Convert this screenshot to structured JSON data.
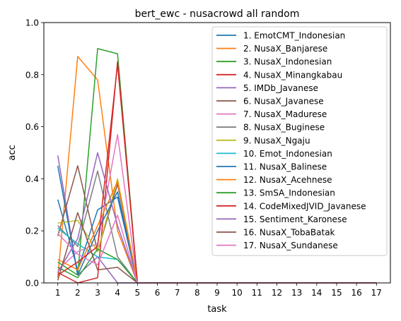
{
  "chart_data": {
    "type": "line",
    "title": "bert_ewc - nusacrowd all random",
    "xlabel": "task",
    "ylabel": "acc",
    "x": [
      1,
      2,
      3,
      4,
      5,
      6,
      7,
      8,
      9,
      10,
      11,
      12,
      13,
      14,
      15,
      16,
      17
    ],
    "x_ticks": [
      "1",
      "2",
      "3",
      "4",
      "5",
      "6",
      "7",
      "8",
      "9",
      "10",
      "11",
      "12",
      "13",
      "14",
      "15",
      "16",
      "17"
    ],
    "ylim": [
      0,
      1
    ],
    "y_ticks": [
      "0.0",
      "0.2",
      "0.4",
      "0.6",
      "0.8",
      "1.0"
    ],
    "grid": false,
    "legend_position": "upper-right",
    "series": [
      {
        "name": "1. EmotCMT_Indonesian",
        "color": "#1f77b4",
        "values": [
          0.32,
          0.05,
          0.28,
          0.33,
          0,
          0,
          0,
          0,
          0,
          0,
          0,
          0,
          0,
          0,
          0,
          0,
          0
        ]
      },
      {
        "name": "2. NusaX_Banjarese",
        "color": "#ff7f0e",
        "values": [
          0.02,
          0.87,
          0.78,
          0.2,
          0,
          0,
          0,
          0,
          0,
          0,
          0,
          0,
          0,
          0,
          0,
          0,
          0
        ]
      },
      {
        "name": "3. NusaX_Indonesian",
        "color": "#2ca02c",
        "values": [
          0.08,
          0.03,
          0.9,
          0.88,
          0,
          0,
          0,
          0,
          0,
          0,
          0,
          0,
          0,
          0,
          0,
          0,
          0
        ]
      },
      {
        "name": "4. NusaX_Minangkabau",
        "color": "#d62728",
        "values": [
          0.04,
          0.0,
          0.02,
          0.85,
          0,
          0,
          0,
          0,
          0,
          0,
          0,
          0,
          0,
          0,
          0,
          0,
          0
        ]
      },
      {
        "name": "5. IMDb_Javanese",
        "color": "#9467bd",
        "values": [
          0.49,
          0.03,
          0.1,
          0.0,
          0,
          0,
          0,
          0,
          0,
          0,
          0,
          0,
          0,
          0,
          0,
          0,
          0
        ]
      },
      {
        "name": "6. NusaX_Javanese",
        "color": "#8c564b",
        "values": [
          0.18,
          0.45,
          0.12,
          0.38,
          0,
          0,
          0,
          0,
          0,
          0,
          0,
          0,
          0,
          0,
          0,
          0,
          0
        ]
      },
      {
        "name": "7. NusaX_Madurese",
        "color": "#e377c2",
        "values": [
          0.05,
          0.12,
          0.15,
          0.57,
          0,
          0,
          0,
          0,
          0,
          0,
          0,
          0,
          0,
          0,
          0,
          0,
          0
        ]
      },
      {
        "name": "8. NusaX_Buginese",
        "color": "#7f7f7f",
        "values": [
          0.22,
          0.14,
          0.43,
          0.1,
          0,
          0,
          0,
          0,
          0,
          0,
          0,
          0,
          0,
          0,
          0,
          0,
          0
        ]
      },
      {
        "name": "9. NusaX_Ngaju",
        "color": "#bcbd22",
        "values": [
          0.23,
          0.24,
          0.12,
          0.4,
          0,
          0,
          0,
          0,
          0,
          0,
          0,
          0,
          0,
          0,
          0,
          0,
          0
        ]
      },
      {
        "name": "10. Emot_Indonesian",
        "color": "#17becf",
        "values": [
          0.21,
          0.15,
          0.1,
          0.09,
          0,
          0,
          0,
          0,
          0,
          0,
          0,
          0,
          0,
          0,
          0,
          0,
          0
        ]
      },
      {
        "name": "11. NusaX_Balinese",
        "color": "#1f77b4",
        "values": [
          0.45,
          0.03,
          0.2,
          0.35,
          0,
          0,
          0,
          0,
          0,
          0,
          0,
          0,
          0,
          0,
          0,
          0,
          0
        ]
      },
      {
        "name": "12. NusaX_Acehnese",
        "color": "#ff7f0e",
        "values": [
          0.09,
          0.05,
          0.22,
          0.39,
          0,
          0,
          0,
          0,
          0,
          0,
          0,
          0,
          0,
          0,
          0,
          0,
          0
        ]
      },
      {
        "name": "13. SmSA_Indonesian",
        "color": "#2ca02c",
        "values": [
          0.06,
          0.02,
          0.13,
          0.09,
          0,
          0,
          0,
          0,
          0,
          0,
          0,
          0,
          0,
          0,
          0,
          0,
          0
        ]
      },
      {
        "name": "14. CodeMixedJVID_Javanese",
        "color": "#d62728",
        "values": [
          0.03,
          0.08,
          0.14,
          0.84,
          0,
          0,
          0,
          0,
          0,
          0,
          0,
          0,
          0,
          0,
          0,
          0,
          0
        ]
      },
      {
        "name": "15. Sentiment_Karonese",
        "color": "#9467bd",
        "values": [
          0.04,
          0.17,
          0.5,
          0.22,
          0,
          0,
          0,
          0,
          0,
          0,
          0,
          0,
          0,
          0,
          0,
          0,
          0
        ]
      },
      {
        "name": "16. NusaX_TobaBatak",
        "color": "#8c564b",
        "values": [
          0.01,
          0.27,
          0.05,
          0.06,
          0,
          0,
          0,
          0,
          0,
          0,
          0,
          0,
          0,
          0,
          0,
          0,
          0
        ]
      },
      {
        "name": "17. NusaX_Sundanese",
        "color": "#e377c2",
        "values": [
          0.19,
          0.11,
          0.07,
          0.26,
          0,
          0,
          0,
          0,
          0,
          0,
          0,
          0,
          0,
          0,
          0,
          0,
          0
        ]
      }
    ]
  }
}
